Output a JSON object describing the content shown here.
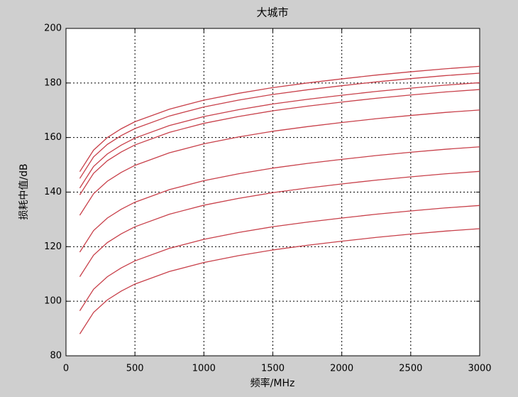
{
  "chart_data": {
    "type": "line",
    "title": "大城市",
    "xlabel": "频率/MHz",
    "ylabel": "损耗中值/dB",
    "x": [
      100,
      200,
      300,
      400,
      500,
      750,
      1000,
      1250,
      1500,
      1750,
      2000,
      2250,
      2500,
      2750,
      3000
    ],
    "series": [
      {
        "color": "#c8404a",
        "values": [
          88,
          95.9,
          100.5,
          103.7,
          106.3,
          110.9,
          114.2,
          116.7,
          118.8,
          120.5,
          122,
          123.4,
          124.6,
          125.7,
          126.6
        ]
      },
      {
        "color": "#c8404a",
        "values": [
          96.5,
          104.4,
          109,
          112.2,
          114.8,
          119.4,
          122.7,
          125.2,
          127.3,
          129,
          130.5,
          131.9,
          133.1,
          134.2,
          135.1
        ]
      },
      {
        "color": "#c8404a",
        "values": [
          109,
          116.9,
          121.5,
          124.7,
          127.3,
          131.9,
          135.2,
          137.7,
          139.8,
          141.5,
          143,
          144.4,
          145.6,
          146.7,
          147.6
        ]
      },
      {
        "color": "#c8404a",
        "values": [
          118,
          125.9,
          130.5,
          133.7,
          136.3,
          140.9,
          144.2,
          146.7,
          148.8,
          150.5,
          152,
          153.4,
          154.6,
          155.7,
          156.6
        ]
      },
      {
        "color": "#c8404a",
        "values": [
          131.5,
          139.4,
          144,
          147.2,
          149.8,
          154.4,
          157.7,
          160.2,
          162.3,
          164,
          165.5,
          166.9,
          168.1,
          169.2,
          170.1
        ]
      },
      {
        "color": "#c8404a",
        "values": [
          139,
          146.9,
          151.5,
          154.7,
          157.3,
          161.9,
          165.2,
          167.7,
          169.8,
          171.5,
          173,
          174.4,
          175.6,
          176.7,
          177.6
        ]
      },
      {
        "color": "#c8404a",
        "values": [
          141.5,
          149.4,
          154,
          157.2,
          159.8,
          164.4,
          167.7,
          170.2,
          172.3,
          174,
          175.5,
          176.9,
          178.1,
          179.2,
          180.1
        ]
      },
      {
        "color": "#c8404a",
        "values": [
          145,
          152.9,
          157.5,
          160.7,
          163.3,
          167.9,
          171.2,
          173.7,
          175.8,
          177.5,
          179,
          180.4,
          181.6,
          182.7,
          183.6
        ]
      },
      {
        "color": "#c8404a",
        "values": [
          147.5,
          155.4,
          160,
          163.2,
          165.8,
          170.4,
          173.7,
          176.2,
          178.3,
          180,
          181.5,
          182.9,
          184.1,
          185.2,
          186.1
        ]
      }
    ],
    "xlim": [
      0,
      3000
    ],
    "xticks": [
      0,
      500,
      1000,
      1500,
      2000,
      2500,
      3000
    ],
    "ylim": [
      80,
      200
    ],
    "yticks": [
      80,
      100,
      120,
      140,
      160,
      180,
      200
    ],
    "grid": true
  }
}
